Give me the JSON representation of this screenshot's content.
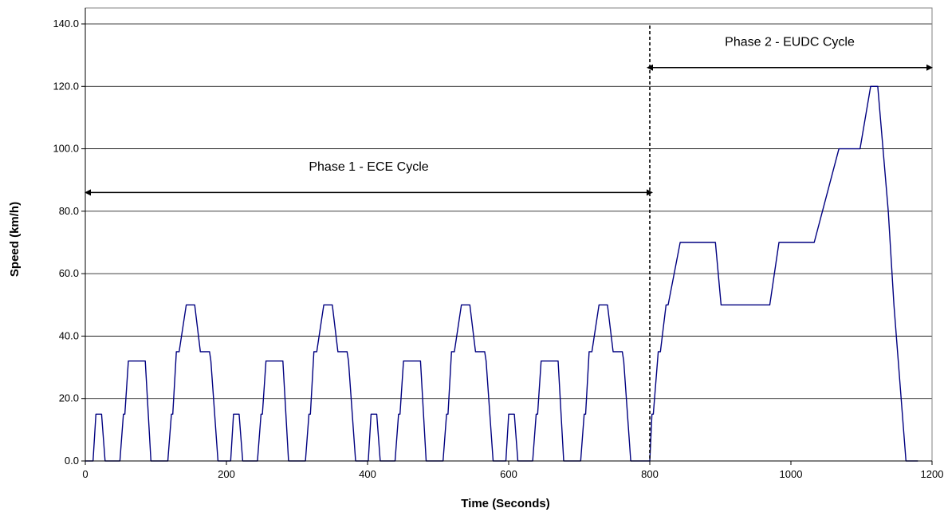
{
  "chart_data": {
    "type": "line",
    "title": "",
    "xlabel": "Time (Seconds)",
    "ylabel": "Speed (km/h)",
    "xlim": [
      0,
      1200
    ],
    "ylim": [
      0,
      140
    ],
    "x_ticks": [
      "0",
      "200",
      "400",
      "600",
      "800",
      "1000",
      "1200"
    ],
    "y_ticks": [
      "0.0",
      "20.0",
      "40.0",
      "60.0",
      "80.0",
      "100.0",
      "120.0",
      "140.0"
    ],
    "grid": "horizontal",
    "legend": "none",
    "series": [
      {
        "color": "#000080",
        "points": [
          [
            0,
            0
          ],
          [
            11,
            0
          ],
          [
            15,
            15
          ],
          [
            23,
            15
          ],
          [
            28,
            0
          ],
          [
            49,
            0
          ],
          [
            54,
            15
          ],
          [
            56,
            15
          ],
          [
            61,
            32
          ],
          [
            85,
            32
          ],
          [
            93,
            0
          ],
          [
            117,
            0
          ],
          [
            122,
            15
          ],
          [
            124,
            15
          ],
          [
            129,
            35
          ],
          [
            133,
            35
          ],
          [
            143,
            50
          ],
          [
            155,
            50
          ],
          [
            163,
            35
          ],
          [
            176,
            35
          ],
          [
            178,
            32
          ],
          [
            188,
            0
          ],
          [
            206,
            0
          ],
          [
            210,
            15
          ],
          [
            218,
            15
          ],
          [
            223,
            0
          ],
          [
            244,
            0
          ],
          [
            249,
            15
          ],
          [
            251,
            15
          ],
          [
            256,
            32
          ],
          [
            280,
            32
          ],
          [
            288,
            0
          ],
          [
            312,
            0
          ],
          [
            317,
            15
          ],
          [
            319,
            15
          ],
          [
            324,
            35
          ],
          [
            328,
            35
          ],
          [
            338,
            50
          ],
          [
            350,
            50
          ],
          [
            358,
            35
          ],
          [
            371,
            35
          ],
          [
            373,
            32
          ],
          [
            383,
            0
          ],
          [
            401,
            0
          ],
          [
            405,
            15
          ],
          [
            413,
            15
          ],
          [
            418,
            0
          ],
          [
            439,
            0
          ],
          [
            444,
            15
          ],
          [
            446,
            15
          ],
          [
            451,
            32
          ],
          [
            475,
            32
          ],
          [
            483,
            0
          ],
          [
            507,
            0
          ],
          [
            512,
            15
          ],
          [
            514,
            15
          ],
          [
            519,
            35
          ],
          [
            523,
            35
          ],
          [
            533,
            50
          ],
          [
            545,
            50
          ],
          [
            553,
            35
          ],
          [
            566,
            35
          ],
          [
            568,
            32
          ],
          [
            578,
            0
          ],
          [
            596,
            0
          ],
          [
            600,
            15
          ],
          [
            608,
            15
          ],
          [
            613,
            0
          ],
          [
            634,
            0
          ],
          [
            639,
            15
          ],
          [
            641,
            15
          ],
          [
            646,
            32
          ],
          [
            670,
            32
          ],
          [
            678,
            0
          ],
          [
            702,
            0
          ],
          [
            707,
            15
          ],
          [
            709,
            15
          ],
          [
            714,
            35
          ],
          [
            718,
            35
          ],
          [
            728,
            50
          ],
          [
            740,
            50
          ],
          [
            748,
            35
          ],
          [
            761,
            35
          ],
          [
            763,
            32
          ],
          [
            773,
            0
          ],
          [
            800,
            0
          ],
          [
            803,
            15
          ],
          [
            805,
            15
          ],
          [
            812,
            35
          ],
          [
            815,
            35
          ],
          [
            823,
            50
          ],
          [
            826,
            50
          ],
          [
            843,
            70
          ],
          [
            893,
            70
          ],
          [
            901,
            50
          ],
          [
            970,
            50
          ],
          [
            983,
            70
          ],
          [
            1033,
            70
          ],
          [
            1068,
            100
          ],
          [
            1098,
            100
          ],
          [
            1113,
            120
          ],
          [
            1123,
            120
          ],
          [
            1138,
            80
          ],
          [
            1146,
            50
          ],
          [
            1163,
            0
          ],
          [
            1180,
            0
          ]
        ]
      }
    ],
    "annotations": [
      {
        "text": "Phase 1 - ECE Cycle",
        "arrow_from": 0,
        "arrow_to": 800,
        "arrow_y": 86,
        "text_y": 93
      },
      {
        "text": "Phase 2 - EUDC Cycle",
        "arrow_from": 800,
        "arrow_to": 1200,
        "arrow_y": 126,
        "text_y": 133
      }
    ],
    "vertical_line": {
      "x": 800,
      "style": "dashed"
    }
  }
}
